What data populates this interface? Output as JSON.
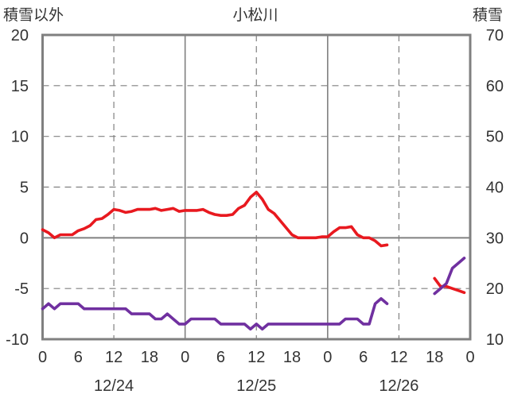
{
  "chart_data": {
    "type": "line",
    "title": "小松川",
    "ylabel_left": "積雪以外",
    "ylabel_right": "積雪",
    "ylim_left": [
      -10,
      20
    ],
    "yticks_left": [
      -10,
      -5,
      0,
      5,
      10,
      15,
      20
    ],
    "ylim_right": [
      10,
      70
    ],
    "yticks_right": [
      10,
      20,
      30,
      40,
      50,
      60,
      70
    ],
    "x_hours_range": [
      0,
      72
    ],
    "x_tick_labels": [
      "0",
      "6",
      "12",
      "18",
      "0",
      "6",
      "12",
      "18",
      "0",
      "6",
      "12",
      "18",
      "0"
    ],
    "date_labels": [
      {
        "label": "12/24",
        "hour": 12
      },
      {
        "label": "12/25",
        "hour": 36
      },
      {
        "label": "12/26",
        "hour": 60
      }
    ],
    "grid": true,
    "series": [
      {
        "axis": "left",
        "color": "#e8191f",
        "segments": [
          [
            [
              0,
              0.8
            ],
            [
              1,
              0.5
            ],
            [
              2,
              0.0
            ],
            [
              3,
              0.3
            ],
            [
              4,
              0.3
            ],
            [
              5,
              0.3
            ],
            [
              6,
              0.7
            ],
            [
              7,
              0.9
            ],
            [
              8,
              1.2
            ],
            [
              9,
              1.8
            ],
            [
              10,
              1.9
            ],
            [
              11,
              2.3
            ],
            [
              12,
              2.8
            ],
            [
              13,
              2.7
            ],
            [
              14,
              2.5
            ],
            [
              15,
              2.6
            ],
            [
              16,
              2.8
            ],
            [
              17,
              2.8
            ],
            [
              18,
              2.8
            ],
            [
              19,
              2.9
            ],
            [
              20,
              2.7
            ],
            [
              21,
              2.8
            ],
            [
              22,
              2.9
            ],
            [
              23,
              2.6
            ],
            [
              24,
              2.7
            ],
            [
              25,
              2.7
            ],
            [
              26,
              2.7
            ],
            [
              27,
              2.8
            ],
            [
              28,
              2.5
            ],
            [
              29,
              2.3
            ],
            [
              30,
              2.2
            ],
            [
              31,
              2.2
            ],
            [
              32,
              2.3
            ],
            [
              33,
              2.9
            ],
            [
              34,
              3.2
            ],
            [
              35,
              4.0
            ],
            [
              36,
              4.5
            ],
            [
              37,
              3.8
            ],
            [
              38,
              2.8
            ],
            [
              39,
              2.4
            ],
            [
              40,
              1.7
            ],
            [
              41,
              1.0
            ],
            [
              42,
              0.3
            ],
            [
              43,
              0.0
            ],
            [
              44,
              0.0
            ],
            [
              45,
              0.0
            ],
            [
              46,
              0.0
            ],
            [
              47,
              0.1
            ],
            [
              48,
              0.1
            ],
            [
              49,
              0.6
            ],
            [
              50,
              1.0
            ],
            [
              51,
              1.0
            ],
            [
              52,
              1.1
            ],
            [
              53,
              0.3
            ],
            [
              54,
              0.0
            ],
            [
              55,
              0.0
            ],
            [
              56,
              -0.3
            ],
            [
              57,
              -0.8
            ],
            [
              58,
              -0.7
            ]
          ],
          [
            [
              66,
              -4.0
            ],
            [
              67,
              -4.8
            ],
            [
              68,
              -4.8
            ],
            [
              69,
              -5.0
            ],
            [
              70,
              -5.2
            ],
            [
              71,
              -5.4
            ]
          ]
        ]
      },
      {
        "axis": "left",
        "color": "#7030a0",
        "segments": [
          [
            [
              0,
              -7.0
            ],
            [
              1,
              -6.5
            ],
            [
              2,
              -7.0
            ],
            [
              3,
              -6.5
            ],
            [
              4,
              -6.5
            ],
            [
              5,
              -6.5
            ],
            [
              6,
              -6.5
            ],
            [
              7,
              -7.0
            ],
            [
              8,
              -7.0
            ],
            [
              9,
              -7.0
            ],
            [
              10,
              -7.0
            ],
            [
              11,
              -7.0
            ],
            [
              12,
              -7.0
            ],
            [
              13,
              -7.0
            ],
            [
              14,
              -7.0
            ],
            [
              15,
              -7.5
            ],
            [
              16,
              -7.5
            ],
            [
              17,
              -7.5
            ],
            [
              18,
              -7.5
            ],
            [
              19,
              -8.0
            ],
            [
              20,
              -8.0
            ],
            [
              21,
              -7.5
            ],
            [
              22,
              -8.0
            ],
            [
              23,
              -8.5
            ],
            [
              24,
              -8.5
            ],
            [
              25,
              -8.0
            ],
            [
              26,
              -8.0
            ],
            [
              27,
              -8.0
            ],
            [
              28,
              -8.0
            ],
            [
              29,
              -8.0
            ],
            [
              30,
              -8.5
            ],
            [
              31,
              -8.5
            ],
            [
              32,
              -8.5
            ],
            [
              33,
              -8.5
            ],
            [
              34,
              -8.5
            ],
            [
              35,
              -9.0
            ],
            [
              36,
              -8.5
            ],
            [
              37,
              -9.0
            ],
            [
              38,
              -8.5
            ],
            [
              39,
              -8.5
            ],
            [
              40,
              -8.5
            ],
            [
              41,
              -8.5
            ],
            [
              42,
              -8.5
            ],
            [
              43,
              -8.5
            ],
            [
              44,
              -8.5
            ],
            [
              45,
              -8.5
            ],
            [
              46,
              -8.5
            ],
            [
              47,
              -8.5
            ],
            [
              48,
              -8.5
            ],
            [
              49,
              -8.5
            ],
            [
              50,
              -8.5
            ],
            [
              51,
              -8.0
            ],
            [
              52,
              -8.0
            ],
            [
              53,
              -8.0
            ],
            [
              54,
              -8.5
            ],
            [
              55,
              -8.5
            ],
            [
              56,
              -6.5
            ],
            [
              57,
              -6.0
            ],
            [
              58,
              -6.5
            ]
          ],
          [
            [
              66,
              -5.5
            ],
            [
              67,
              -5.0
            ],
            [
              68,
              -4.5
            ],
            [
              69,
              -3.0
            ],
            [
              70,
              -2.5
            ],
            [
              71,
              -2.0
            ]
          ]
        ]
      }
    ]
  }
}
